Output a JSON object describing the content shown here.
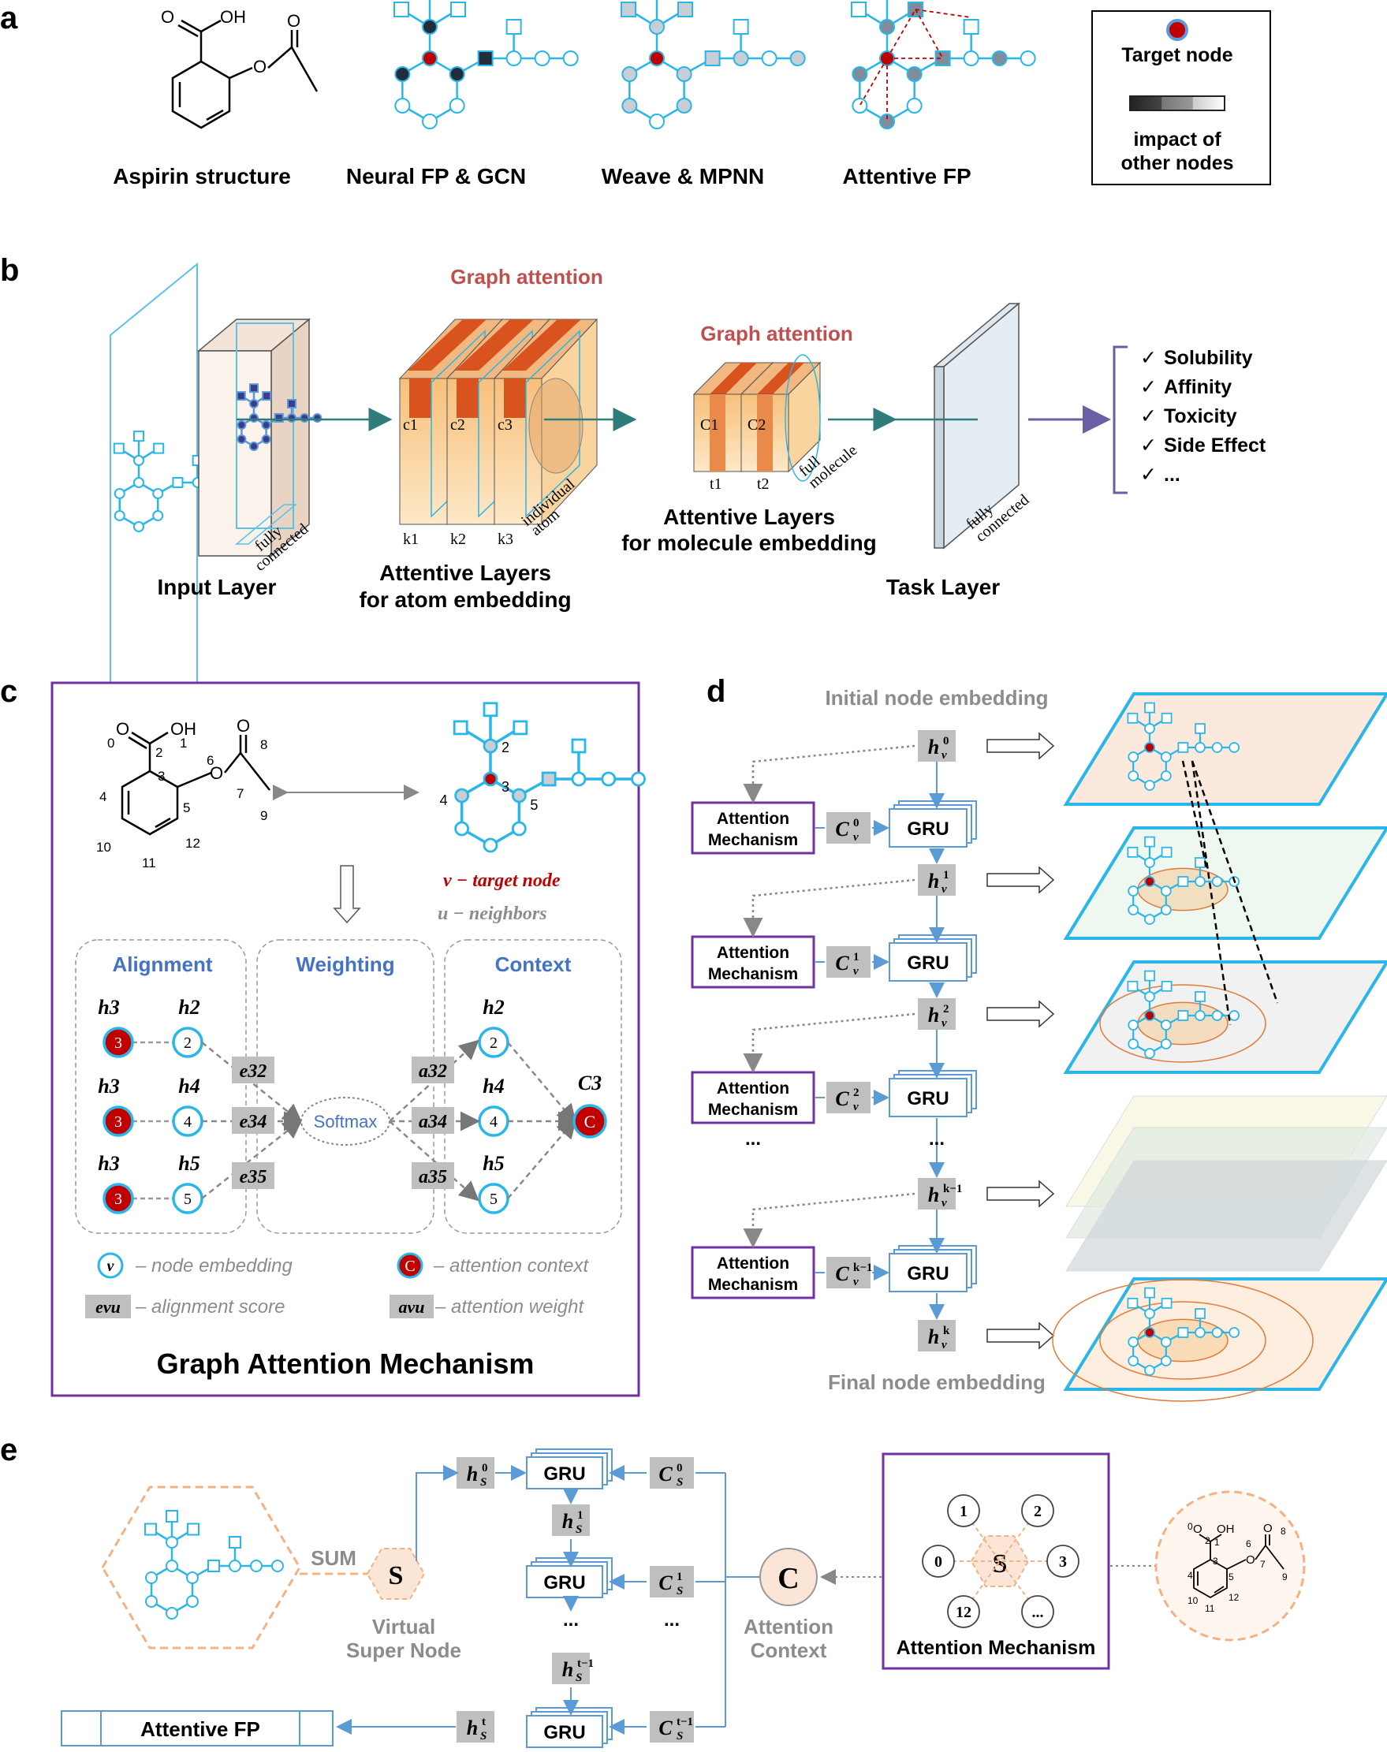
{
  "panels": {
    "a": "a",
    "b": "b",
    "c": "c",
    "d": "d",
    "e": "e"
  },
  "panel_a": {
    "captions": [
      "Aspirin structure",
      "Neural FP & GCN",
      "Weave & MPNN",
      "Attentive FP"
    ],
    "legend_target": "Target node",
    "legend_impact_1": "impact of",
    "legend_impact_2": "other nodes",
    "aspirin_o": "O",
    "aspirin_oh": "OH",
    "aspirin_o2": "O",
    "aspirin_o3": "O"
  },
  "panel_b": {
    "graph_attention_1": "Graph attention",
    "graph_attention_2": "Graph attention",
    "input_layer": "Input Layer",
    "atom_layers_1": "Attentive Layers",
    "atom_layers_2": "for atom embedding",
    "mol_layers_1": "Attentive Layers",
    "mol_layers_2": "for molecule embedding",
    "task_layer": "Task Layer",
    "fc1_a": "fully",
    "fc1_b": "connected",
    "fc2_a": "fully",
    "fc2_b": "connected",
    "indiv_a": "individual",
    "indiv_b": "atom",
    "full_a": "full",
    "full_b": "molecule",
    "c_labels": [
      "c1",
      "c2",
      "c3"
    ],
    "k_labels": [
      "k1",
      "k2",
      "k3"
    ],
    "C_labels": [
      "C1",
      "C2"
    ],
    "t_labels": [
      "t1",
      "t2"
    ],
    "outputs": [
      "Solubility",
      "Affinity",
      "Toxicity",
      "Side Effect",
      "..."
    ],
    "check": "✓"
  },
  "panel_c": {
    "atom_numbers": [
      "0",
      "1",
      "2",
      "3",
      "4",
      "5",
      "6",
      "7",
      "8",
      "9",
      "10",
      "11",
      "12"
    ],
    "graph_numbers": [
      "2",
      "3",
      "4",
      "5"
    ],
    "target_node": "v − target node",
    "neighbors": "u − neighbors",
    "alignment": "Alignment",
    "weighting": "Weighting",
    "context": "Context",
    "softmax": "Softmax",
    "e_labels": [
      "e32",
      "e34",
      "e35"
    ],
    "a_labels": [
      "a32",
      "a34",
      "a35"
    ],
    "h_left": [
      "h3",
      "h3",
      "h3"
    ],
    "h_mid": [
      "h2",
      "h4",
      "h5"
    ],
    "node_target": "3",
    "node_mid": [
      "2",
      "4",
      "5"
    ],
    "c3": "C3",
    "c_node": "C",
    "legend_v": "v",
    "legend_node_embedding": "– node embedding",
    "legend_c": "C",
    "legend_attention_context": "– attention context",
    "legend_evu": "evu",
    "legend_alignment_score": "– alignment score",
    "legend_avu": "avu",
    "legend_attention_weight": "– attention weight",
    "title": "Graph Attention Mechanism"
  },
  "panel_d": {
    "initial": "Initial node embedding",
    "final": "Final node embedding",
    "mech_1": "Attention",
    "mech_2": "Mechanism",
    "gru": "GRU",
    "h_sups": [
      "0",
      "1",
      "2",
      "k−1",
      "k"
    ],
    "c_sups": [
      "0",
      "1",
      "2",
      "k−1"
    ],
    "dots": "..."
  },
  "panel_e": {
    "sum": "SUM",
    "s": "S",
    "virtual_1": "Virtual",
    "virtual_2": "Super Node",
    "gru": "GRU",
    "h_sups": [
      "0",
      "1",
      "t−1",
      "t"
    ],
    "c_sups": [
      "0",
      "1",
      "t−1"
    ],
    "dots": "...",
    "c": "C",
    "attn_ctx_1": "Attention",
    "attn_ctx_2": "Context",
    "mech_title": "Attention Mechanism",
    "mech_nodes": [
      "1",
      "2",
      "0",
      "3",
      "12",
      "..."
    ],
    "output": "Attentive FP"
  }
}
